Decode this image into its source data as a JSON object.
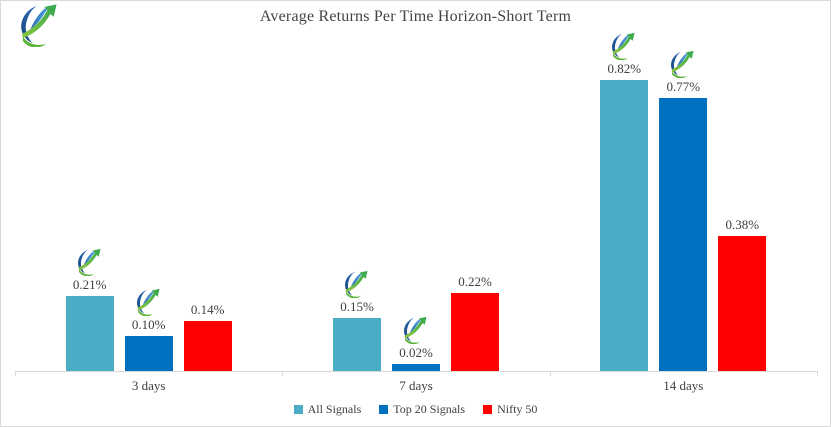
{
  "chart_data": {
    "type": "bar",
    "title": "Average Returns Per Time Horizon-Short Term",
    "categories": [
      "3 days",
      "7 days",
      "14 days"
    ],
    "series": [
      {
        "name": "All Signals",
        "color": "#4BACC6",
        "values": [
          0.21,
          0.15,
          0.82
        ],
        "data_labels": [
          "0.21%",
          "0.15%",
          "0.82%"
        ],
        "logo_above_labels": true
      },
      {
        "name": "Top 20 Signals",
        "color": "#0070C0",
        "values": [
          0.1,
          0.02,
          0.77
        ],
        "data_labels": [
          "0.10%",
          "0.02%",
          "0.77%"
        ],
        "logo_above_labels": true
      },
      {
        "name": "Nifty 50",
        "color": "#FF0000",
        "values": [
          0.14,
          0.22,
          0.38
        ],
        "data_labels": [
          "0.14%",
          "0.22%",
          "0.38%"
        ],
        "logo_above_labels": false
      }
    ],
    "unit": "%",
    "xlabel": "",
    "ylabel": "",
    "ylim": [
      0,
      0.9
    ],
    "grid": false,
    "y_axis_visible": false,
    "legend_position": "bottom",
    "axis_color": "#D9D9D9",
    "text_color": "#404040",
    "brand_logo_icon": "growth-swoosh-arrow-logo"
  }
}
